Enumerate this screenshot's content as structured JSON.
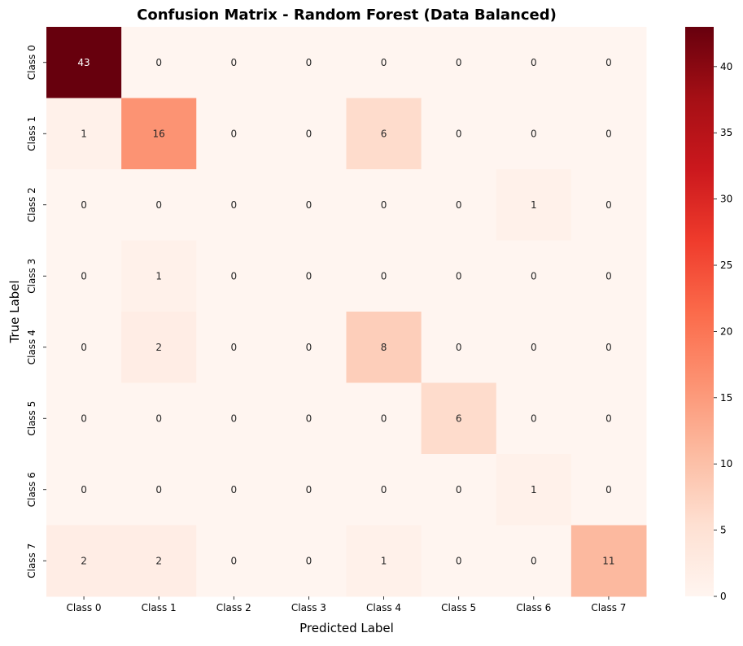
{
  "chart_data": {
    "type": "heatmap",
    "title": "Confusion Matrix - Random Forest (Data Balanced)",
    "xlabel": "Predicted Label",
    "ylabel": "True Label",
    "x_categories": [
      "Class 0",
      "Class 1",
      "Class 2",
      "Class 3",
      "Class 4",
      "Class 5",
      "Class 6",
      "Class 7"
    ],
    "y_categories": [
      "Class 0",
      "Class 1",
      "Class 2",
      "Class 3",
      "Class 4",
      "Class 5",
      "Class 6",
      "Class 7"
    ],
    "matrix": [
      [
        43,
        0,
        0,
        0,
        0,
        0,
        0,
        0
      ],
      [
        1,
        16,
        0,
        0,
        6,
        0,
        0,
        0
      ],
      [
        0,
        0,
        0,
        0,
        0,
        0,
        1,
        0
      ],
      [
        0,
        1,
        0,
        0,
        0,
        0,
        0,
        0
      ],
      [
        0,
        2,
        0,
        0,
        8,
        0,
        0,
        0
      ],
      [
        0,
        0,
        0,
        0,
        0,
        6,
        0,
        0
      ],
      [
        0,
        0,
        0,
        0,
        0,
        0,
        1,
        0
      ],
      [
        2,
        2,
        0,
        0,
        1,
        0,
        0,
        11
      ]
    ],
    "colormap": "Reds",
    "colorbar": {
      "vmin": 0,
      "vmax": 43,
      "ticks": [
        0,
        5,
        10,
        15,
        20,
        25,
        30,
        35,
        40
      ]
    },
    "annotations": true,
    "grid": false
  }
}
